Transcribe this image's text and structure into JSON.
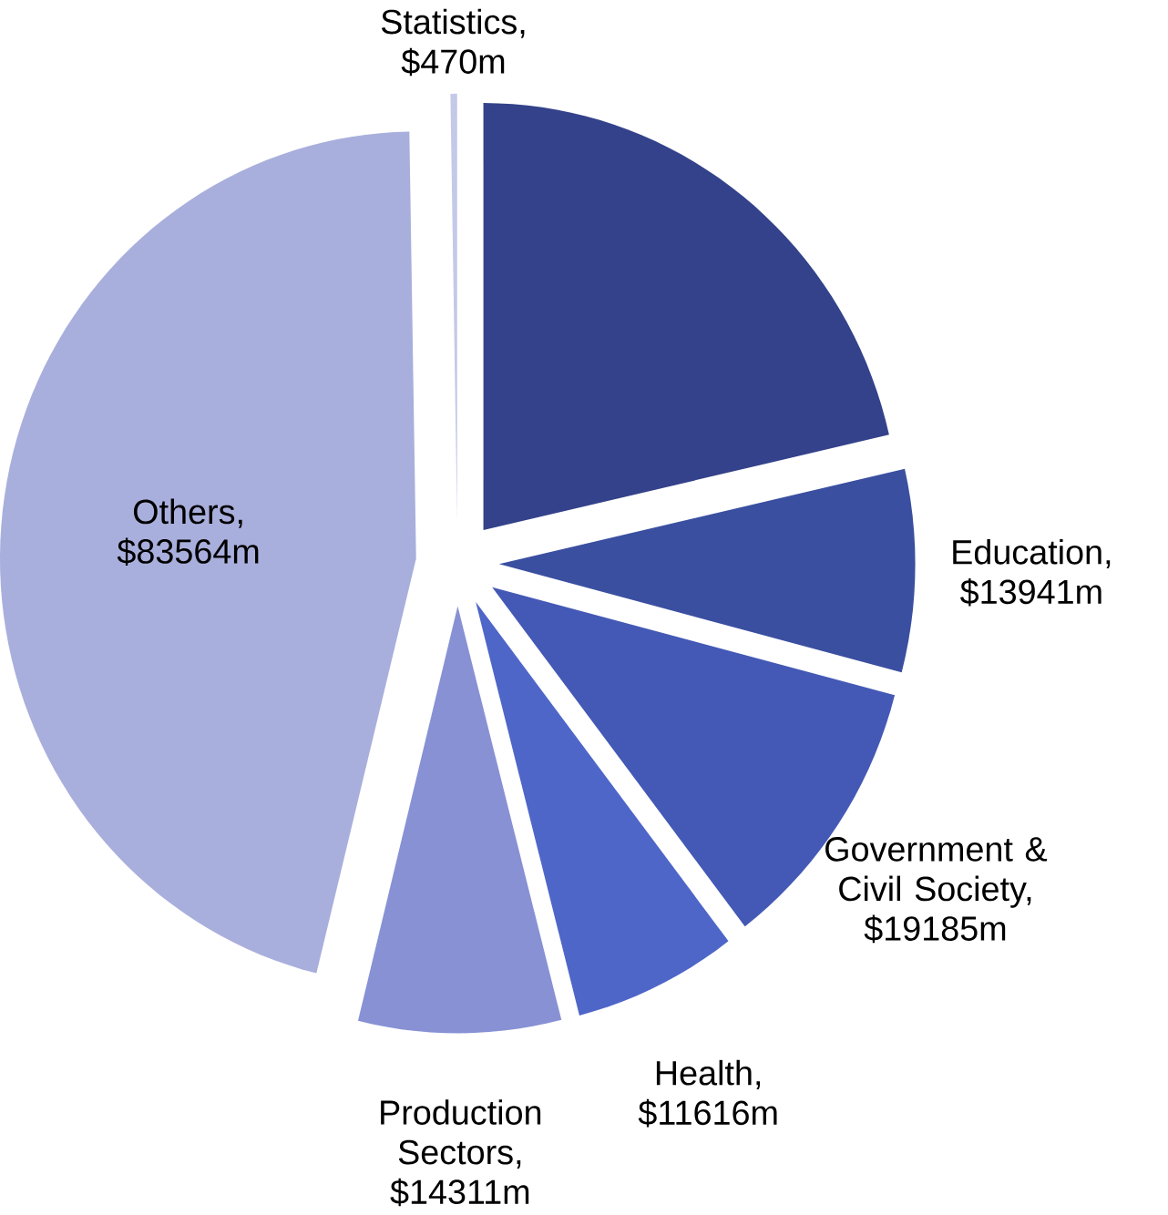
{
  "chart_data": {
    "type": "pie",
    "categories": [
      null,
      "Education, $13941m",
      "Government & Civil Society, $19185m",
      "Health, $11616m",
      "Production Sectors, $14311m",
      "Others, $83564m",
      "Statistics, $470m"
    ],
    "values": [
      39000,
      13941,
      19185,
      11616,
      14311,
      83564,
      470
    ],
    "colors": [
      "#33428a",
      "#3a4fa0",
      "#4459b5",
      "#4e66c8",
      "#8791d4",
      "#a9afdc",
      "#c5c9e8"
    ]
  }
}
